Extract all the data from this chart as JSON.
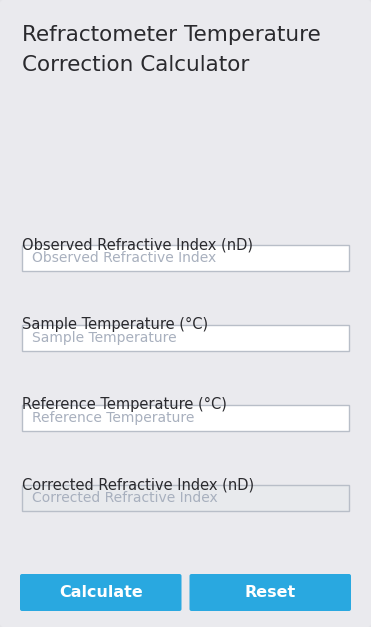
{
  "title_line1": "Refractometer Temperature",
  "title_line2": "Correction Calculator",
  "bg_color": "#e4e4e8",
  "card_color": "#eaeaee",
  "title_color": "#2a2a2e",
  "label_color": "#2a2a2e",
  "input_bg": "#ffffff",
  "input_border": "#b8bec8",
  "input_bg_disabled": "#e8eaed",
  "input_text_color": "#a8b0be",
  "button_color": "#29a8e0",
  "button_text_color": "#ffffff",
  "labels": [
    "Observed Refractive Index (nD)",
    "Sample Temperature (°C)",
    "Reference Temperature (°C)",
    "Corrected Refractive Index (nD)"
  ],
  "placeholders": [
    "Observed Refractive Index",
    "Sample Temperature",
    "Reference Temperature",
    "Corrected Refractive Index"
  ],
  "placeholder_disabled": [
    false,
    false,
    false,
    true
  ],
  "buttons": [
    "Calculate",
    "Reset"
  ],
  "title_fontsize": 15.5,
  "label_fontsize": 10.5,
  "placeholder_fontsize": 10,
  "button_fontsize": 11.5,
  "fig_w": 3.71,
  "fig_h": 6.27,
  "dpi": 100
}
